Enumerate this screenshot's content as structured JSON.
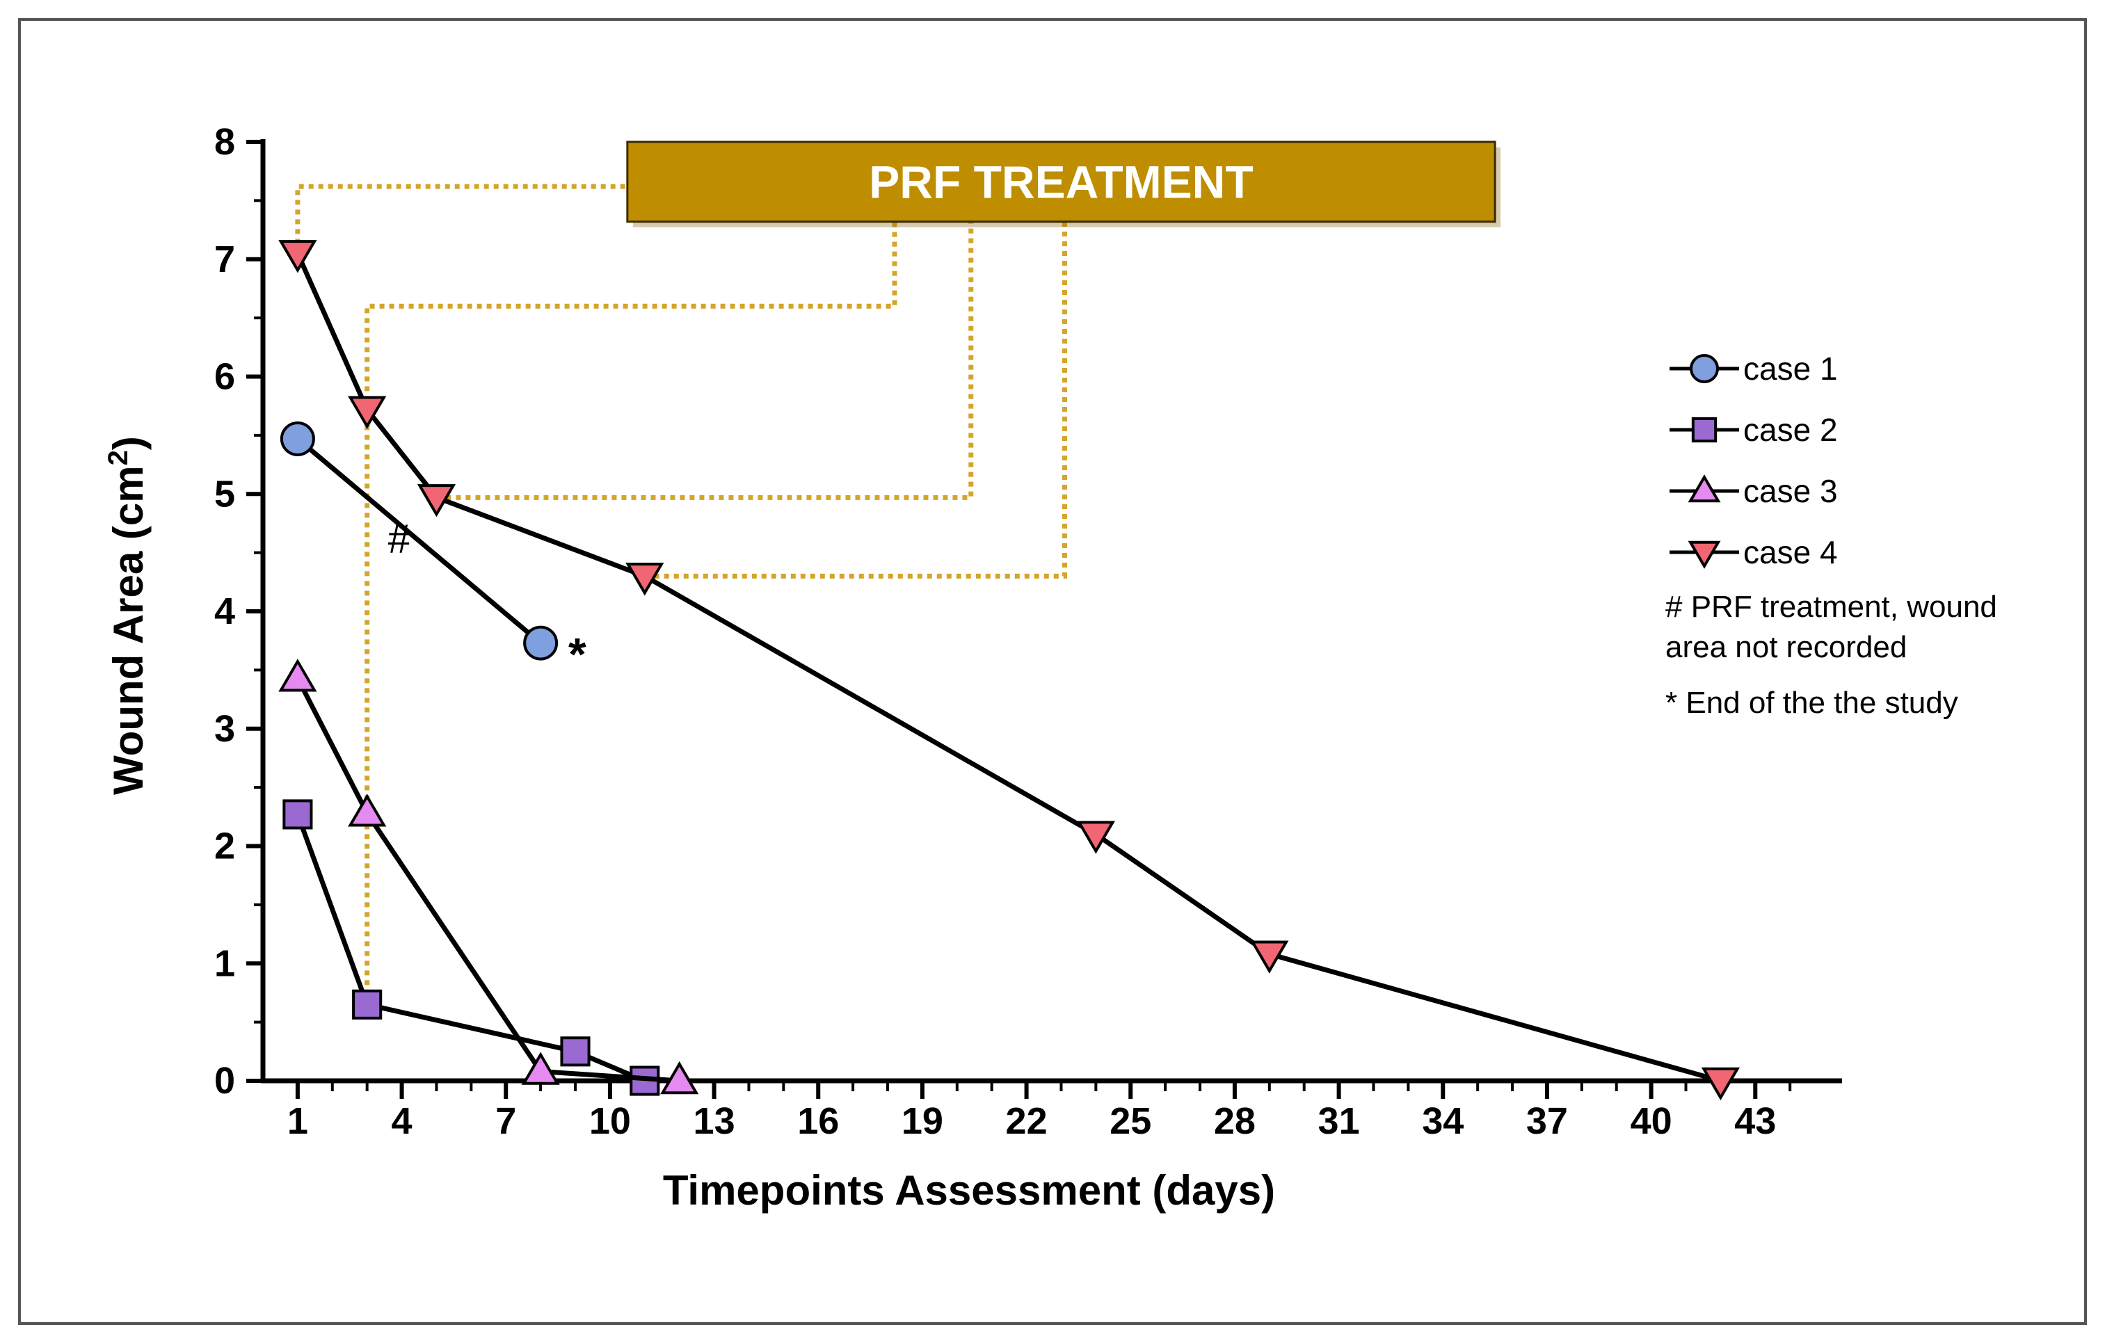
{
  "chart_data": {
    "type": "line",
    "xlabel": "Timepoints Assessment (days)",
    "ylabel": "Wound Area (cm",
    "ylabel_superscript": "2",
    "ylabel_suffix": ")",
    "xlim": [
      0,
      45.5
    ],
    "ylim": [
      0,
      8
    ],
    "xticks": [
      1,
      4,
      7,
      10,
      13,
      16,
      19,
      22,
      25,
      28,
      31,
      34,
      37,
      40,
      43
    ],
    "yticks": [
      0,
      1,
      2,
      3,
      4,
      5,
      6,
      7,
      8
    ],
    "series": [
      {
        "name": "case 1",
        "marker": "circle",
        "color": "#7f9fde",
        "x": [
          1,
          8
        ],
        "y": [
          5.47,
          3.73
        ]
      },
      {
        "name": "case 2",
        "marker": "square",
        "color": "#9a6ad2",
        "x": [
          1,
          3,
          9,
          11
        ],
        "y": [
          2.27,
          0.65,
          0.25,
          0.0
        ]
      },
      {
        "name": "case 3",
        "marker": "triangle-up",
        "color": "#e58af0",
        "x": [
          1,
          3,
          8,
          12
        ],
        "y": [
          3.43,
          2.28,
          0.08,
          0.0
        ]
      },
      {
        "name": "case 4",
        "marker": "triangle-down",
        "color": "#f06673",
        "x": [
          1,
          3,
          5,
          11,
          24,
          29,
          42
        ],
        "y": [
          7.05,
          5.72,
          4.97,
          4.3,
          2.1,
          1.08,
          0.0
        ]
      }
    ],
    "annotations": {
      "hash_symbol": "#",
      "asterisk_symbol": "*",
      "hash_at": {
        "x": 3.6,
        "y": 4.5
      },
      "asterisk_at": {
        "x": 8.8,
        "y": 3.5
      }
    },
    "treatment_banner": {
      "label": "PRF TREATMENT",
      "color": "#be8e00",
      "connector_color": "#d4a52a",
      "x_range": [
        10.5,
        35.5
      ],
      "y_range": [
        7.32,
        8.0
      ],
      "connectors": [
        {
          "series": "case 4",
          "x": 1,
          "y": 7.05,
          "level": 7.62,
          "join_x": 10.5
        },
        {
          "series": "case 2",
          "x": 3,
          "y": 0.65,
          "level": 6.6,
          "join_x": 18.2
        },
        {
          "series": "case 4",
          "x": 5,
          "y": 4.97,
          "level": 4.97,
          "join_x": 20.4
        },
        {
          "series": "case 4",
          "x": 11,
          "y": 4.3,
          "level": 4.3,
          "join_x": 23.1
        }
      ]
    },
    "legend": {
      "position": "right",
      "notes": [
        "# PRF treatment, wound",
        "area not recorded",
        "* End of the the study"
      ]
    },
    "grid": false
  }
}
